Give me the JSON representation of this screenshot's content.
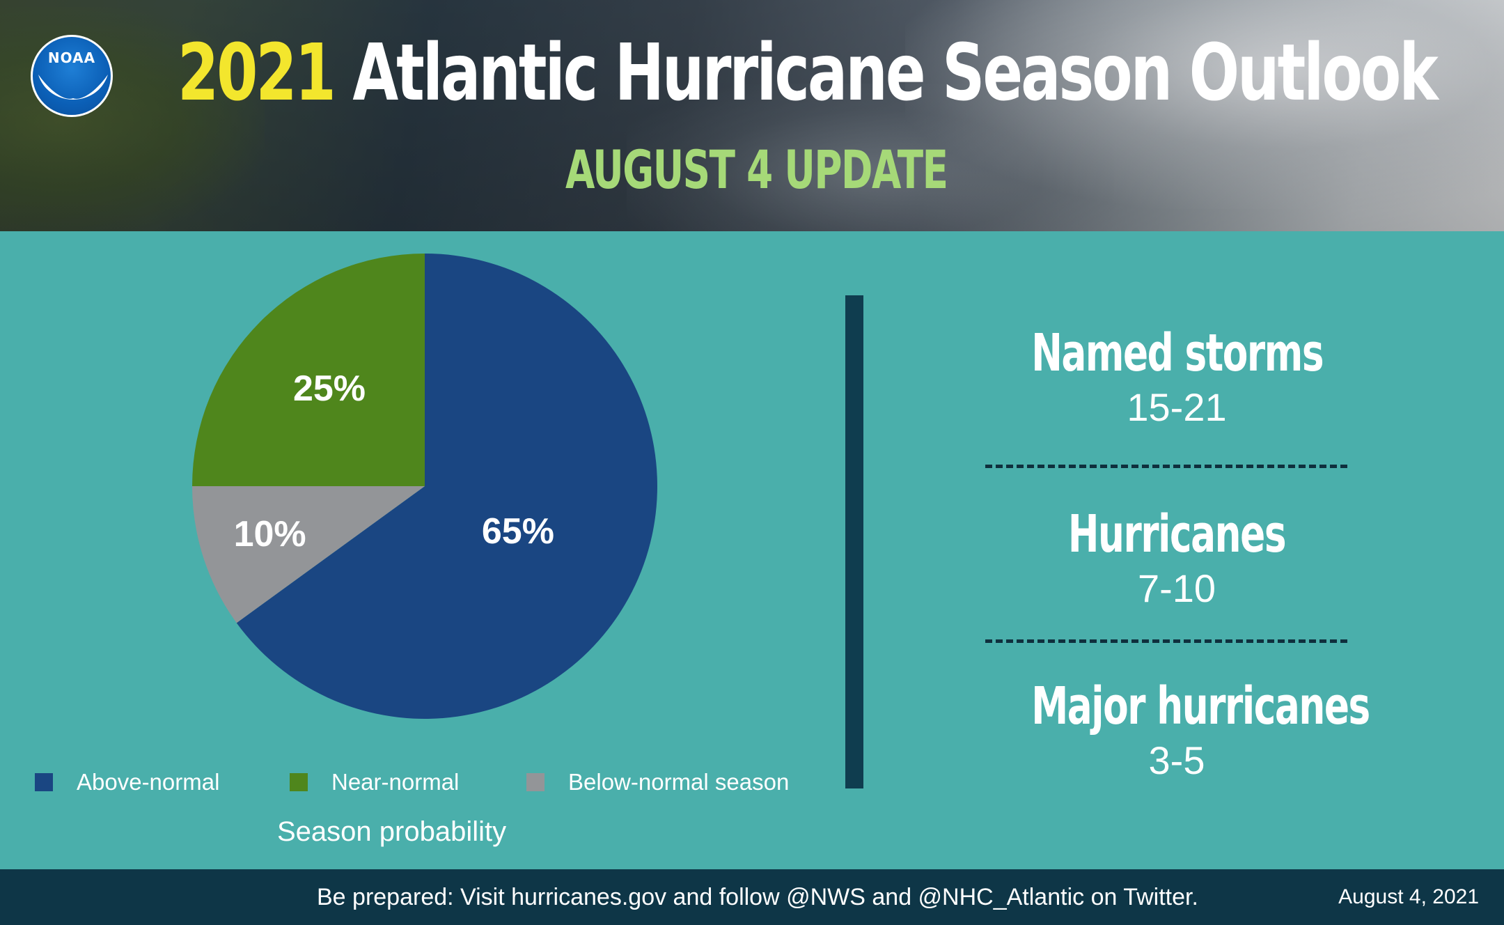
{
  "header": {
    "title_year": "2021",
    "title_rest": "Atlantic Hurricane Season Outlook",
    "subtitle": "AUGUST 4 UPDATE",
    "logo_text": "NOAA"
  },
  "chart_data": {
    "type": "pie",
    "title": "Season probability",
    "slices": [
      {
        "label": "Above-normal",
        "value": 65,
        "display": "65%",
        "color": "#1a4682"
      },
      {
        "label": "Below-normal season",
        "value": 10,
        "display": "10%",
        "color": "#939598"
      },
      {
        "label": "Near-normal",
        "value": 25,
        "display": "25%",
        "color": "#4f861c"
      }
    ],
    "legend_order": [
      "Above-normal",
      "Near-normal",
      "Below-normal season"
    ],
    "legend_placement": "bottom"
  },
  "stats": [
    {
      "title": "Named storms",
      "value": "15-21"
    },
    {
      "title": "Hurricanes",
      "value": "7-10"
    },
    {
      "title": "Major hurricanes",
      "value": "3-5"
    }
  ],
  "footer": {
    "message": "Be prepared: Visit hurricanes.gov and follow @NWS and @NHC_Atlantic on Twitter.",
    "date": "August 4, 2021"
  },
  "colors": {
    "background": "#4aafab",
    "footer": "#0e3647",
    "divider": "#0f3d4f",
    "title_year": "#f3e62d",
    "subtitle": "#a6d978"
  }
}
